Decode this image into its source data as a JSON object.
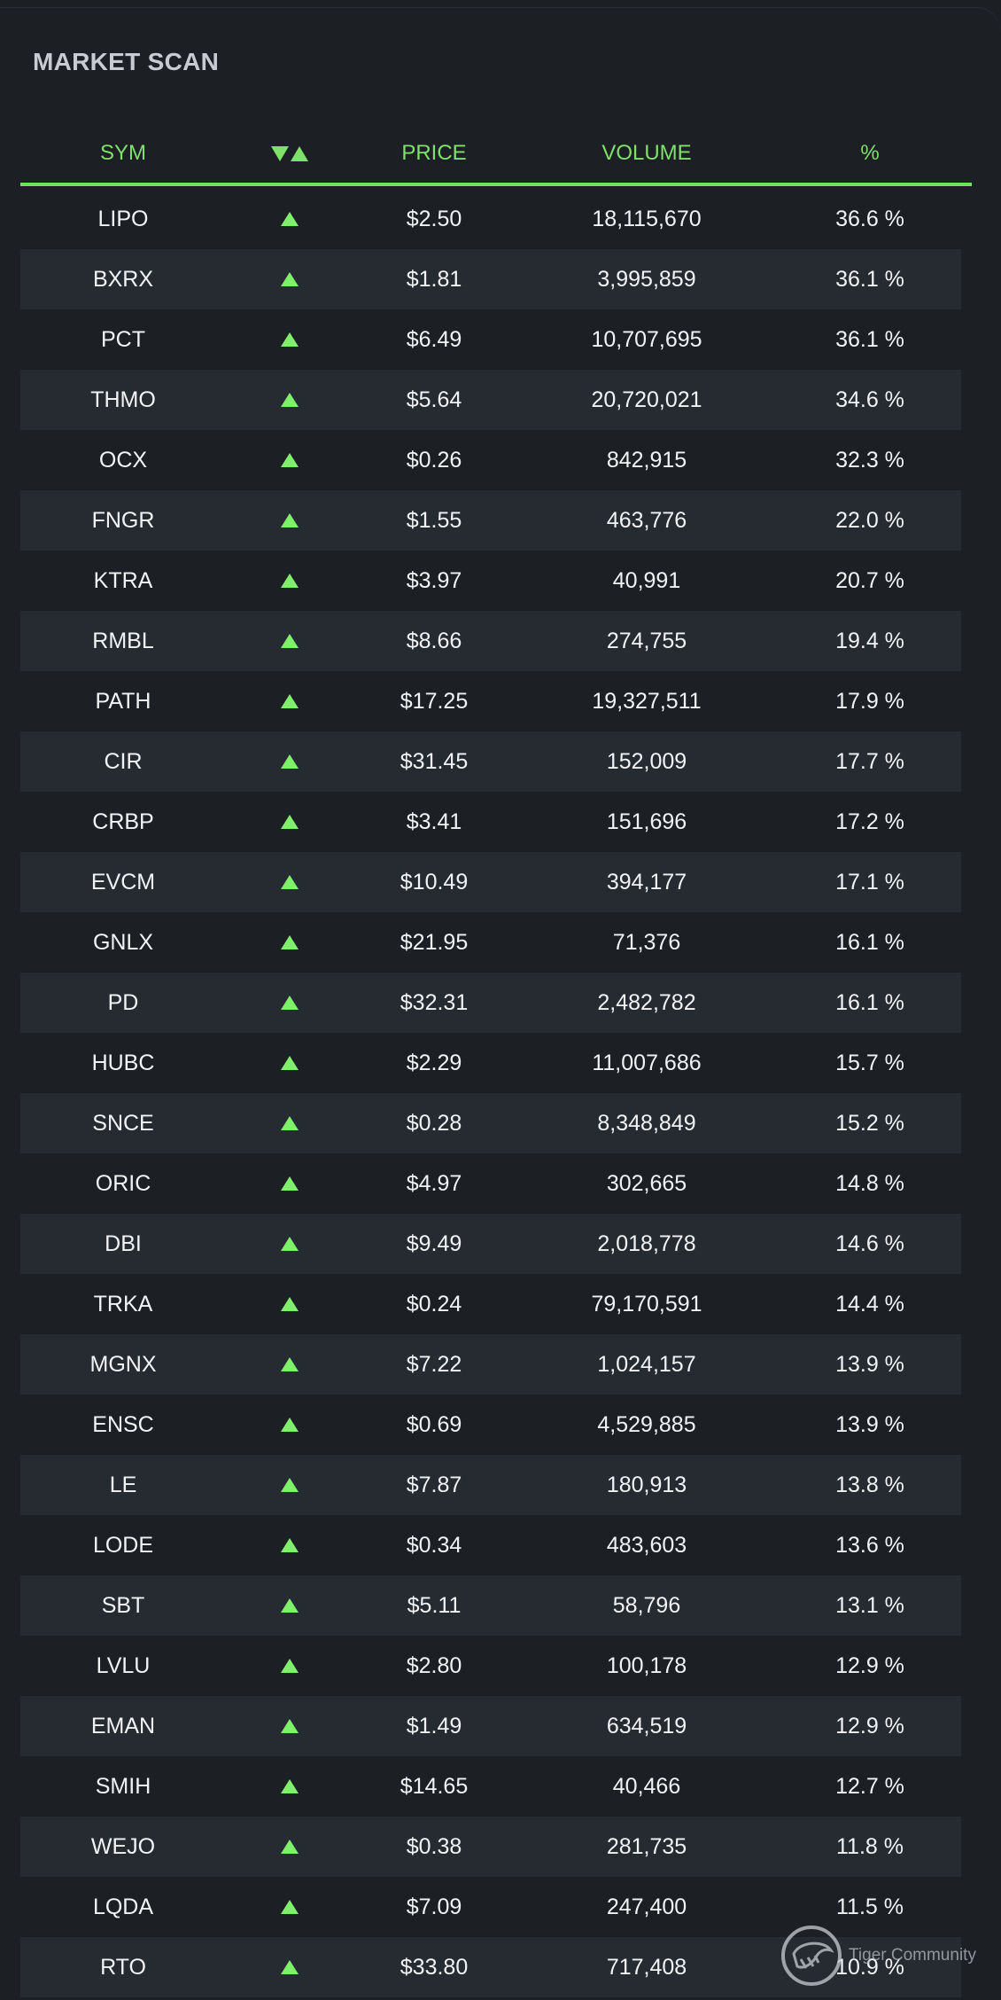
{
  "panel": {
    "title": "MARKET SCAN"
  },
  "table": {
    "columns": {
      "sym": "SYM",
      "price": "PRICE",
      "volume": "VOLUME",
      "pct": "%"
    },
    "sort_icon": "sort-down-up-icon",
    "row_icon": "triangle-up-icon",
    "accent_color": "#7fe06a",
    "rows": [
      {
        "sym": "LIPO",
        "price": "$2.50",
        "volume": "18,115,670",
        "pct": "36.6 %"
      },
      {
        "sym": "BXRX",
        "price": "$1.81",
        "volume": "3,995,859",
        "pct": "36.1 %"
      },
      {
        "sym": "PCT",
        "price": "$6.49",
        "volume": "10,707,695",
        "pct": "36.1 %"
      },
      {
        "sym": "THMO",
        "price": "$5.64",
        "volume": "20,720,021",
        "pct": "34.6 %"
      },
      {
        "sym": "OCX",
        "price": "$0.26",
        "volume": "842,915",
        "pct": "32.3 %"
      },
      {
        "sym": "FNGR",
        "price": "$1.55",
        "volume": "463,776",
        "pct": "22.0 %"
      },
      {
        "sym": "KTRA",
        "price": "$3.97",
        "volume": "40,991",
        "pct": "20.7 %"
      },
      {
        "sym": "RMBL",
        "price": "$8.66",
        "volume": "274,755",
        "pct": "19.4 %"
      },
      {
        "sym": "PATH",
        "price": "$17.25",
        "volume": "19,327,511",
        "pct": "17.9 %"
      },
      {
        "sym": "CIR",
        "price": "$31.45",
        "volume": "152,009",
        "pct": "17.7 %"
      },
      {
        "sym": "CRBP",
        "price": "$3.41",
        "volume": "151,696",
        "pct": "17.2 %"
      },
      {
        "sym": "EVCM",
        "price": "$10.49",
        "volume": "394,177",
        "pct": "17.1 %"
      },
      {
        "sym": "GNLX",
        "price": "$21.95",
        "volume": "71,376",
        "pct": "16.1 %"
      },
      {
        "sym": "PD",
        "price": "$32.31",
        "volume": "2,482,782",
        "pct": "16.1 %"
      },
      {
        "sym": "HUBC",
        "price": "$2.29",
        "volume": "11,007,686",
        "pct": "15.7 %"
      },
      {
        "sym": "SNCE",
        "price": "$0.28",
        "volume": "8,348,849",
        "pct": "15.2 %"
      },
      {
        "sym": "ORIC",
        "price": "$4.97",
        "volume": "302,665",
        "pct": "14.8 %"
      },
      {
        "sym": "DBI",
        "price": "$9.49",
        "volume": "2,018,778",
        "pct": "14.6 %"
      },
      {
        "sym": "TRKA",
        "price": "$0.24",
        "volume": "79,170,591",
        "pct": "14.4 %"
      },
      {
        "sym": "MGNX",
        "price": "$7.22",
        "volume": "1,024,157",
        "pct": "13.9 %"
      },
      {
        "sym": "ENSC",
        "price": "$0.69",
        "volume": "4,529,885",
        "pct": "13.9 %"
      },
      {
        "sym": "LE",
        "price": "$7.87",
        "volume": "180,913",
        "pct": "13.8 %"
      },
      {
        "sym": "LODE",
        "price": "$0.34",
        "volume": "483,603",
        "pct": "13.6 %"
      },
      {
        "sym": "SBT",
        "price": "$5.11",
        "volume": "58,796",
        "pct": "13.1 %"
      },
      {
        "sym": "LVLU",
        "price": "$2.80",
        "volume": "100,178",
        "pct": "12.9 %"
      },
      {
        "sym": "EMAN",
        "price": "$1.49",
        "volume": "634,519",
        "pct": "12.9 %"
      },
      {
        "sym": "SMIH",
        "price": "$14.65",
        "volume": "40,466",
        "pct": "12.7 %"
      },
      {
        "sym": "WEJO",
        "price": "$0.38",
        "volume": "281,735",
        "pct": "11.8 %"
      },
      {
        "sym": "LQDA",
        "price": "$7.09",
        "volume": "247,400",
        "pct": "11.5 %"
      },
      {
        "sym": "RTO",
        "price": "$33.80",
        "volume": "717,408",
        "pct": "10.9 %"
      }
    ]
  },
  "watermark": {
    "text": "Tiger Community",
    "icon": "tiger-logo-icon"
  }
}
